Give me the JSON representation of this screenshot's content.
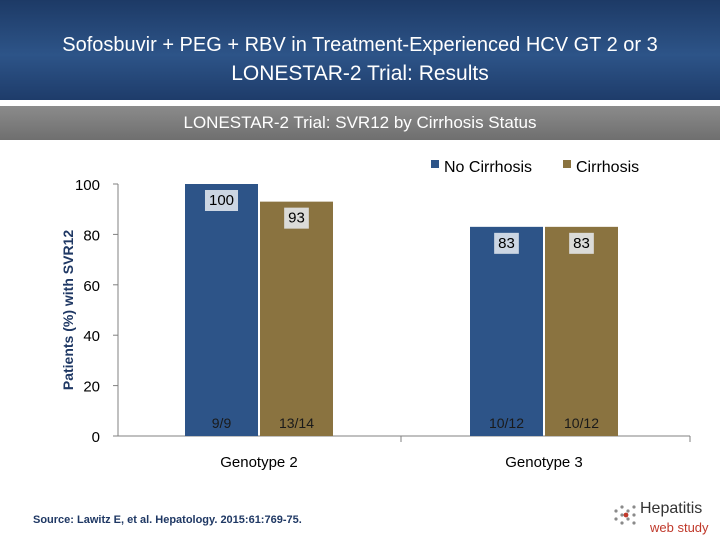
{
  "header": {
    "line1": "Sofosbuvir + PEG + RBV in Treatment-Experienced HCV GT 2 or 3",
    "line2": "LONESTAR-2 Trial: Results"
  },
  "subtitle_bar": "LONESTAR-2 Trial: SVR12 by Cirrhosis Status",
  "source": "Source:  Lawitz E, et al. Hepatology. 2015:61:769-75.",
  "logo": {
    "name": "Hepatitis",
    "sub": "web study",
    "icon": "hepatitis-logo-icon"
  },
  "chart_data": {
    "type": "bar",
    "title": "",
    "ylabel": "Patients (%) with SVR12",
    "xlabel": "",
    "ylim": [
      0,
      100
    ],
    "yticks": [
      0,
      20,
      40,
      60,
      80,
      100
    ],
    "categories": [
      "Genotype 2",
      "Genotype 3"
    ],
    "legend_position": "top-right",
    "grid": false,
    "series": [
      {
        "name": "No Cirrhosis",
        "color": "#2d5488",
        "values": [
          100,
          83
        ],
        "labels": [
          "100",
          "83"
        ],
        "fractions": [
          "9/9",
          "10/12"
        ]
      },
      {
        "name": "Cirrhosis",
        "color": "#8a7340",
        "values": [
          93,
          83
        ],
        "labels": [
          "93",
          "83"
        ],
        "fractions": [
          "13/14",
          "10/12"
        ]
      }
    ]
  }
}
